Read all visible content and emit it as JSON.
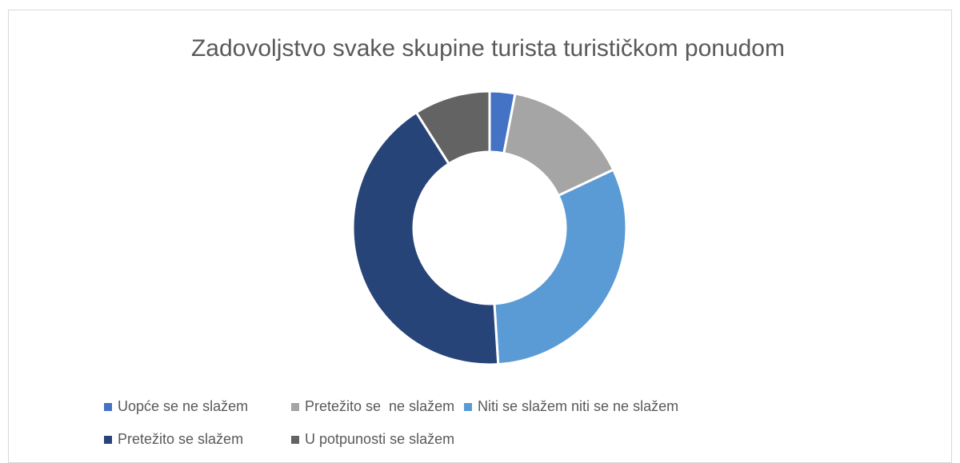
{
  "chart_data": {
    "type": "donut",
    "title": "Zadovoljstvo svake skupine turista turističkom ponudom",
    "categories": [
      "Uopće se ne slažem",
      "Pretežito se  ne slažem",
      "Niti se slažem niti se ne slažem",
      "Pretežito se slažem",
      "U potpunosti se slažem"
    ],
    "values": [
      3,
      15,
      31,
      42,
      9
    ],
    "colors": [
      "#4472c4",
      "#a5a5a5",
      "#5b9bd5",
      "#264478",
      "#636363"
    ],
    "legend": "bottom"
  }
}
